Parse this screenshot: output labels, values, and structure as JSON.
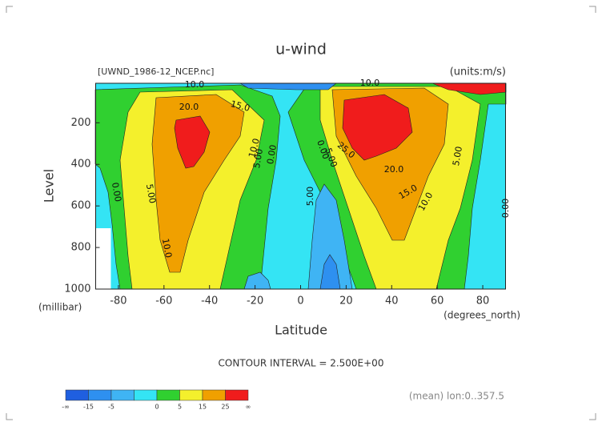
{
  "chart_data": {
    "type": "contour",
    "title": "u-wind",
    "subtitle_left": "[UWND_1986-12_NCEP.nc]",
    "subtitle_right": "(units:m/s)",
    "ylabel": "Level",
    "yunit": "(millibar)",
    "xlabel": "Latitude",
    "xunit": "(degrees_north)",
    "xlim": [
      -90,
      90
    ],
    "xticks": [
      -80,
      -60,
      -40,
      -20,
      0,
      20,
      40,
      60,
      80
    ],
    "ylim": [
      1000,
      10
    ],
    "yticks": [
      200,
      400,
      600,
      800,
      1000
    ],
    "footer": "CONTOUR INTERVAL = 2.500E+00",
    "note": "(mean) lon:0..357.5",
    "colorbar_colors": [
      "#1f5fe0",
      "#2e90f0",
      "#3fb4f4",
      "#34e4f4",
      "#30d030",
      "#f4f02c",
      "#f0a000",
      "#f01c1c"
    ],
    "colorbar_labels": [
      "-∞",
      "-15",
      "-5",
      null,
      "0",
      "5",
      "15",
      "25",
      "∞"
    ],
    "contour_labels": [
      {
        "value": 10,
        "label": "10.0"
      },
      {
        "value": 20,
        "label": "20.0"
      },
      {
        "value": 15,
        "label": "15.0"
      },
      {
        "value": 10,
        "label": "10.0"
      },
      {
        "value": 5,
        "label": "5.00"
      },
      {
        "value": 0,
        "label": "0.00"
      },
      {
        "value": 5,
        "label": "5.00"
      },
      {
        "value": 0,
        "label": "0.00"
      },
      {
        "value": 10,
        "label": "10.0"
      },
      {
        "value": 10,
        "label": "10.0"
      },
      {
        "value": 0,
        "label": "0.00"
      },
      {
        "value": 5,
        "label": "5.00"
      },
      {
        "value": 25,
        "label": "25.0"
      },
      {
        "value": 20,
        "label": "20.0"
      },
      {
        "value": 15,
        "label": "15.0"
      },
      {
        "value": 10,
        "label": "10.0"
      },
      {
        "value": 5,
        "label": "5.00"
      },
      {
        "value": 0,
        "label": "0.00"
      },
      {
        "value": 5,
        "label": "5.00"
      }
    ]
  }
}
